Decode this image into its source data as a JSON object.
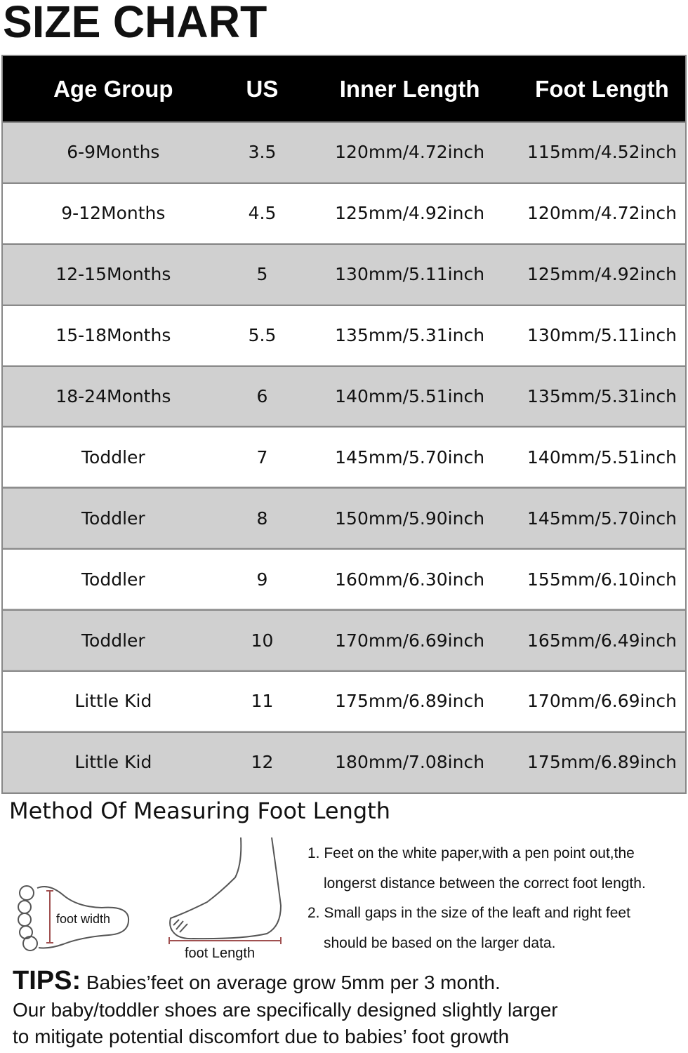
{
  "title": "SIZE CHART",
  "table": {
    "headers": [
      "Age Group",
      "US",
      "Inner Length",
      "Foot Length"
    ],
    "rows": [
      [
        "6-9Months",
        "3.5",
        "120mm/4.72inch",
        "115mm/4.52inch"
      ],
      [
        "9-12Months",
        "4.5",
        "125mm/4.92inch",
        "120mm/4.72inch"
      ],
      [
        "12-15Months",
        "5",
        "130mm/5.11inch",
        "125mm/4.92inch"
      ],
      [
        "15-18Months",
        "5.5",
        "135mm/5.31inch",
        "130mm/5.11inch"
      ],
      [
        "18-24Months",
        "6",
        "140mm/5.51inch",
        "135mm/5.31inch"
      ],
      [
        "Toddler",
        "7",
        "145mm/5.70inch",
        "140mm/5.51inch"
      ],
      [
        "Toddler",
        "8",
        "150mm/5.90inch",
        "145mm/5.70inch"
      ],
      [
        "Toddler",
        "9",
        "160mm/6.30inch",
        "155mm/6.10inch"
      ],
      [
        "Toddler",
        "10",
        "170mm/6.69inch",
        "165mm/6.49inch"
      ],
      [
        "Little Kid",
        "11",
        "175mm/6.89inch",
        "170mm/6.69inch"
      ],
      [
        "Little Kid",
        "12",
        "180mm/7.08inch",
        "175mm/6.89inch"
      ]
    ]
  },
  "method": {
    "title": "Method Of Measuring Foot Length",
    "foot_width_label": "foot width",
    "foot_length_label": "foot Length",
    "steps": [
      "1. Feet on the white paper,with a pen point out,the",
      "longerst distance between the correct foot length.",
      "2. Small gaps in the size of the leaft and right feet",
      "should be based on the larger data."
    ]
  },
  "tips": {
    "label": "TIPS:",
    "lines": [
      "Babies’feet on average grow 5mm per 3 month.",
      "Our baby/toddler shoes are specifically designed slightly larger",
      "to mitigate potential discomfort due to babies’ foot growth"
    ]
  }
}
